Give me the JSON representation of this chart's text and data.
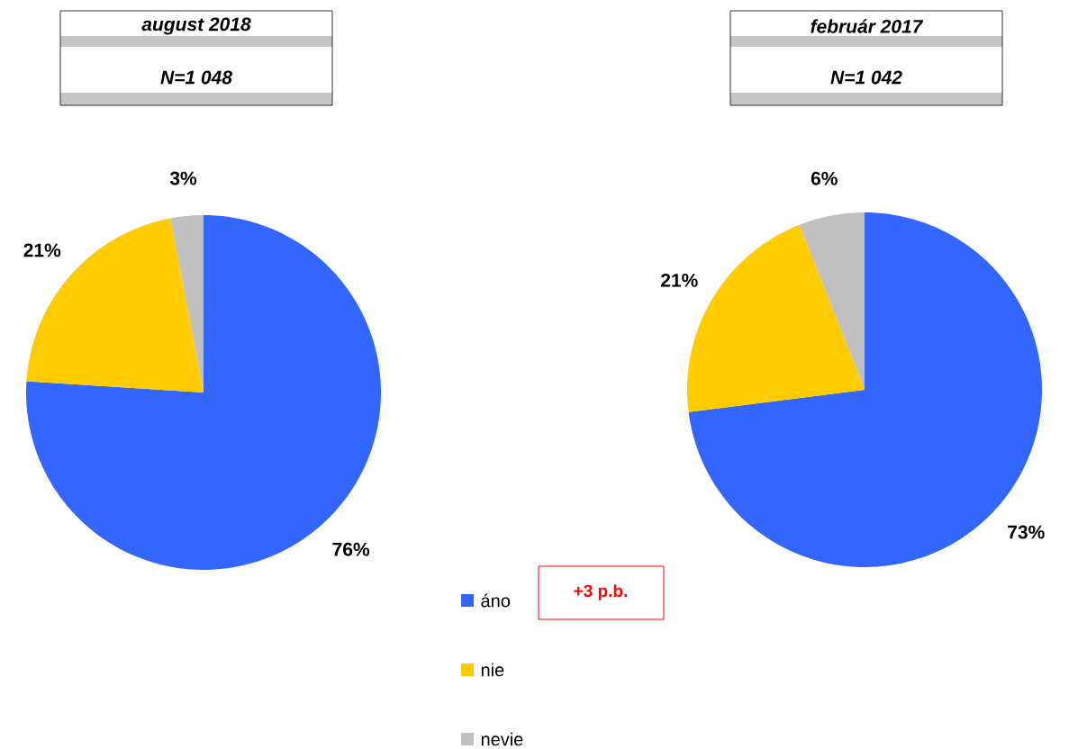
{
  "chart_data": [
    {
      "type": "pie",
      "title": "august 2018",
      "subtitle": "N=1 048",
      "categories": [
        "áno",
        "nie",
        "nevie"
      ],
      "values": [
        76,
        21,
        3
      ],
      "colors": [
        "#3366ff",
        "#ffcc00",
        "#c0c0c0"
      ],
      "value_labels": [
        "76%",
        "21%",
        "3%"
      ],
      "legend": "bottom right",
      "annotations": [
        "+3 p.b."
      ]
    },
    {
      "type": "pie",
      "title": "február 2017",
      "subtitle": "N=1 042",
      "categories": [
        null,
        null,
        null
      ],
      "values": [
        73,
        21,
        6
      ],
      "colors": [
        "#3366ff",
        "#ffcc00",
        "#c0c0c0"
      ],
      "value_labels": [
        "73%",
        "21%",
        "6%"
      ]
    }
  ]
}
